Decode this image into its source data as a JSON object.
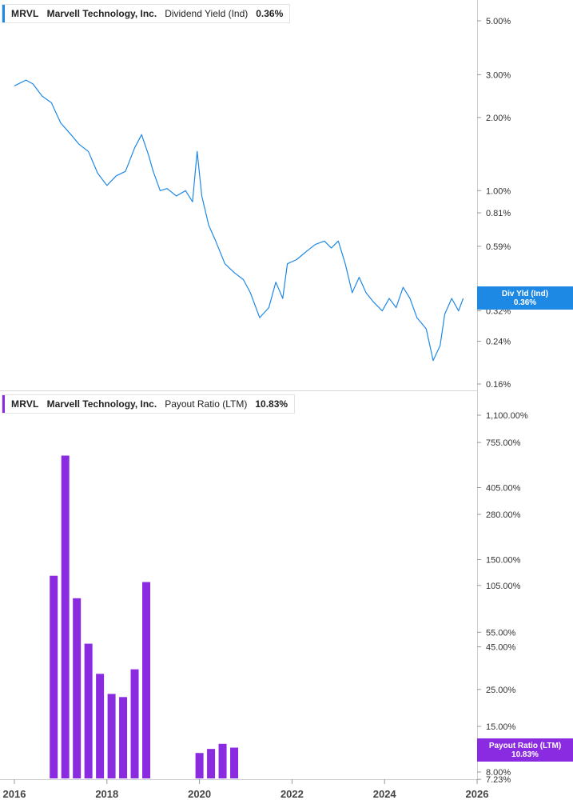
{
  "top_legend": {
    "ticker": "MRVL",
    "company": "Marvell Technology, Inc.",
    "metric": "Dividend Yield (Ind)",
    "value": "0.36%",
    "color": "#1e88e5"
  },
  "bottom_legend": {
    "ticker": "MRVL",
    "company": "Marvell Technology, Inc.",
    "metric": "Payout Ratio (LTM)",
    "value": "10.83%",
    "color": "#8a2be2"
  },
  "top_tag": {
    "label": "Div Yld (Ind)",
    "value": "0.36%",
    "color": "#1e88e5"
  },
  "bottom_tag": {
    "label": "Payout Ratio (LTM)",
    "value": "10.83%",
    "color": "#8a2be2"
  },
  "x_axis": {
    "labels": [
      "2016",
      "2018",
      "2020",
      "2022",
      "2024",
      "2026"
    ],
    "years": [
      2016,
      2018,
      2020,
      2022,
      2024,
      2026
    ]
  },
  "chart_data": [
    {
      "type": "line",
      "scale": "log",
      "y_ticks": [
        "5.00%",
        "3.00%",
        "2.00%",
        "1.00%",
        "0.81%",
        "0.59%",
        "0.32%",
        "0.24%",
        "0.16%"
      ],
      "y_tick_values": [
        5.0,
        3.0,
        2.0,
        1.0,
        0.81,
        0.59,
        0.32,
        0.24,
        0.16
      ],
      "series": [
        {
          "name": "Dividend Yield (Ind)",
          "color": "#1e88e5",
          "x": [
            2016.0,
            2016.25,
            2016.4,
            2016.6,
            2016.8,
            2017.0,
            2017.2,
            2017.4,
            2017.6,
            2017.8,
            2018.0,
            2018.2,
            2018.4,
            2018.6,
            2018.75,
            2018.9,
            2019.0,
            2019.15,
            2019.3,
            2019.5,
            2019.7,
            2019.85,
            2019.95,
            2020.05,
            2020.2,
            2020.35,
            2020.55,
            2020.75,
            2020.95,
            2021.1,
            2021.3,
            2021.5,
            2021.65,
            2021.8,
            2021.9,
            2022.1,
            2022.3,
            2022.5,
            2022.7,
            2022.85,
            2023.0,
            2023.15,
            2023.3,
            2023.45,
            2023.6,
            2023.75,
            2023.95,
            2024.1,
            2024.25,
            2024.4,
            2024.55,
            2024.7,
            2024.9,
            2025.05,
            2025.2,
            2025.3,
            2025.45,
            2025.6,
            2025.7
          ],
          "values": [
            2.7,
            2.85,
            2.75,
            2.45,
            2.3,
            1.9,
            1.72,
            1.55,
            1.45,
            1.18,
            1.05,
            1.15,
            1.2,
            1.5,
            1.7,
            1.4,
            1.2,
            1.0,
            1.02,
            0.95,
            1.0,
            0.9,
            1.45,
            0.95,
            0.72,
            0.62,
            0.5,
            0.46,
            0.43,
            0.38,
            0.3,
            0.33,
            0.42,
            0.36,
            0.5,
            0.52,
            0.56,
            0.6,
            0.62,
            0.58,
            0.62,
            0.5,
            0.38,
            0.44,
            0.38,
            0.35,
            0.32,
            0.36,
            0.33,
            0.4,
            0.36,
            0.3,
            0.27,
            0.2,
            0.23,
            0.31,
            0.36,
            0.32,
            0.36
          ]
        }
      ]
    },
    {
      "type": "bar",
      "scale": "log",
      "y_ticks": [
        "1,100.00%",
        "755.00%",
        "405.00%",
        "280.00%",
        "150.00%",
        "105.00%",
        "55.00%",
        "45.00%",
        "25.00%",
        "15.00%",
        "8.00%",
        "7.23%"
      ],
      "y_tick_values": [
        1100,
        755,
        405,
        280,
        150,
        105,
        55,
        45,
        25,
        15,
        8.0,
        7.23
      ],
      "series": [
        {
          "name": "Payout Ratio (LTM)",
          "color": "#8a2be2",
          "x": [
            2016.85,
            2017.1,
            2017.35,
            2017.6,
            2017.85,
            2018.1,
            2018.35,
            2018.6,
            2018.85,
            2020.0,
            2020.25,
            2020.5,
            2020.75
          ],
          "values": [
            120,
            630,
            88,
            47,
            31,
            23.5,
            22.5,
            33,
            110,
            10.4,
            11.0,
            11.8,
            11.2
          ]
        }
      ]
    }
  ]
}
